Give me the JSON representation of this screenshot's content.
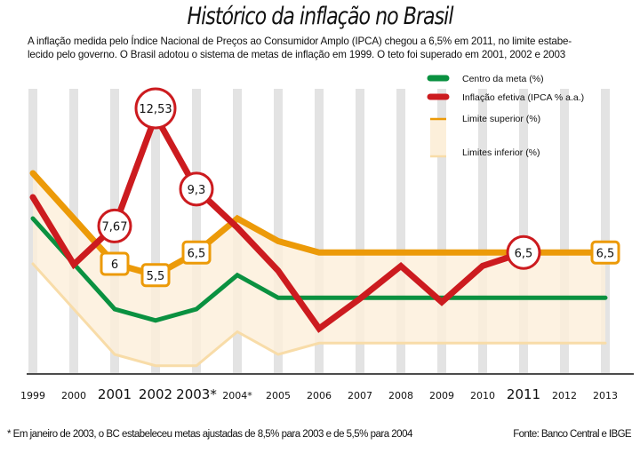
{
  "header": {
    "title": "Histórico da inflação no Brasil",
    "subtitle_lines": [
      "A inflação medida pelo Índice Nacional de Preços ao Consumidor Amplo (IPCA) chegou a 6,5% em 2011, no limite estabe-",
      "lecido pelo governo. O Brasil adotou o sistema de metas de inflação em 1999. O teto foi superado em 2001, 2002 e 2003"
    ]
  },
  "footer": {
    "footnote": "* Em janeiro de 2003, o BC estabeleceu metas ajustadas de 8,5% para 2003 e de 5,5% para 2004",
    "source": "Fonte: Banco Central e IBGE"
  },
  "colors": {
    "center": "#0a9140",
    "ipca": "#cc1b1f",
    "upper": "#ec9a08",
    "lower": "#f8dca8",
    "band": "#fcefda",
    "column": "#e3e3e3",
    "axis": "#111111"
  },
  "chart_data": {
    "type": "line",
    "title": "Histórico da inflação no Brasil",
    "xlabel": "",
    "ylabel": "",
    "ylim": [
      0,
      14
    ],
    "grid": false,
    "legend_position": "top-right",
    "categories": [
      "1999",
      "2000",
      "2001",
      "2002",
      "2003*",
      "2004*",
      "2005",
      "2006",
      "2007",
      "2008",
      "2009",
      "2010",
      "2011",
      "2012",
      "2013"
    ],
    "emphasized_categories": [
      "2001",
      "2002",
      "2003*",
      "2011"
    ],
    "series": [
      {
        "name": "Centro da meta (%)",
        "key": "center",
        "values": [
          8,
          6,
          4,
          3.5,
          4,
          5.5,
          4.5,
          4.5,
          4.5,
          4.5,
          4.5,
          4.5,
          4.5,
          4.5,
          4.5
        ]
      },
      {
        "name": "Inflação efetiva (IPCA % a.a.)",
        "key": "ipca",
        "values": [
          8.94,
          5.97,
          7.67,
          12.53,
          9.3,
          7.6,
          5.69,
          3.14,
          4.46,
          5.9,
          4.31,
          5.91,
          6.5,
          null,
          null
        ]
      },
      {
        "name": "Limite superior (%)",
        "key": "upper",
        "values": [
          10,
          8,
          6,
          5.5,
          6.5,
          8,
          7,
          6.5,
          6.5,
          6.5,
          6.5,
          6.5,
          6.5,
          6.5,
          6.5
        ]
      },
      {
        "name": "Limites inferior (%)",
        "key": "lower",
        "values": [
          6,
          4,
          2,
          1.5,
          1.5,
          3,
          2,
          2.5,
          2.5,
          2.5,
          2.5,
          2.5,
          2.5,
          2.5,
          2.5
        ]
      }
    ],
    "annotations": [
      {
        "series": "ipca",
        "category": "2001",
        "label": "7,67",
        "shape": "circle"
      },
      {
        "series": "ipca",
        "category": "2002",
        "label": "12,53",
        "shape": "circle"
      },
      {
        "series": "ipca",
        "category": "2003*",
        "label": "9,3",
        "shape": "circle"
      },
      {
        "series": "ipca",
        "category": "2011",
        "label": "6,5",
        "shape": "circle"
      },
      {
        "series": "upper",
        "category": "2001",
        "label": "6",
        "shape": "box"
      },
      {
        "series": "upper",
        "category": "2002",
        "label": "5,5",
        "shape": "box"
      },
      {
        "series": "upper",
        "category": "2003*",
        "label": "6,5",
        "shape": "box"
      },
      {
        "series": "upper",
        "category": "2013",
        "label": "6,5",
        "shape": "box"
      }
    ]
  }
}
